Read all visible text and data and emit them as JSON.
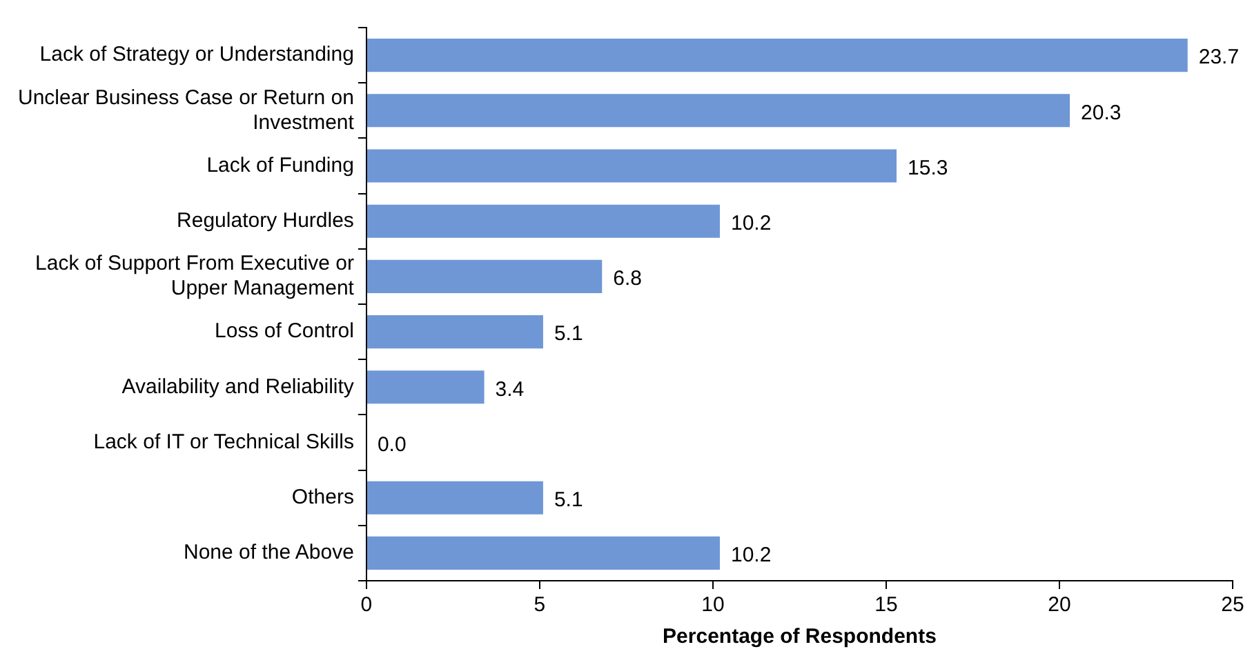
{
  "chart_data": {
    "type": "bar",
    "orientation": "horizontal",
    "xlabel": "Percentage of Respondents",
    "categories": [
      "Lack of Strategy or Understanding",
      "Unclear Business Case or Return on Investment",
      "Lack of Funding",
      "Regulatory Hurdles",
      "Lack of Support From Executive or Upper Management",
      "Loss of Control",
      "Availability and Reliability",
      "Lack of IT or Technical Skills",
      "Others",
      "None of the Above"
    ],
    "values": [
      23.7,
      20.3,
      15.3,
      10.2,
      6.8,
      5.1,
      3.4,
      0.0,
      5.1,
      10.2
    ],
    "value_labels": [
      "23.7",
      "20.3",
      "15.3",
      "10.2",
      "6.8",
      "5.1",
      "3.4",
      "0.0",
      "5.1",
      "10.2"
    ],
    "color": "#6f97d6",
    "xlim": [
      0,
      25
    ],
    "xticks": [
      0,
      5,
      10,
      15,
      20,
      25
    ],
    "grid": false,
    "legend": false
  }
}
